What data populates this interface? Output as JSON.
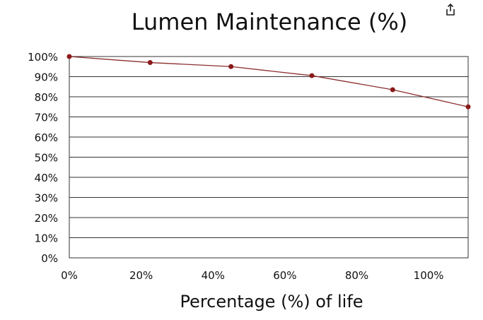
{
  "toolbar": {
    "share_icon": "share-icon"
  },
  "chart_data": {
    "type": "line",
    "title": "Lumen Maintenance (%)",
    "xlabel": "Percentage (%) of life",
    "ylabel": "",
    "x_ticks": [
      "0%",
      "20%",
      "40%",
      "60%",
      "80%",
      "100%"
    ],
    "x_tick_values": [
      0,
      20,
      40,
      60,
      80,
      100
    ],
    "y_ticks": [
      "0%",
      "10%",
      "20%",
      "30%",
      "40%",
      "50%",
      "60%",
      "70%",
      "80%",
      "90%",
      "100%"
    ],
    "y_tick_values": [
      0,
      10,
      20,
      30,
      40,
      50,
      60,
      70,
      80,
      90,
      100
    ],
    "xlim": [
      0,
      111
    ],
    "ylim": [
      0,
      100
    ],
    "grid": "horizontal",
    "legend": "none",
    "series": [
      {
        "x": [
          0,
          22.5,
          45,
          67.5,
          90,
          111
        ],
        "y": [
          100,
          97,
          95,
          90.5,
          83.5,
          75
        ]
      }
    ],
    "colors": {
      "line": "#8b2e2e",
      "marker": "#8b1a1a",
      "grid": "#333333"
    }
  }
}
